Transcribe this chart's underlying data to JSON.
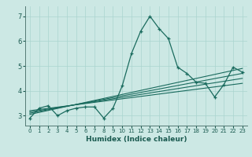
{
  "xlabel": "Humidex (Indice chaleur)",
  "ylabel": "",
  "background_color": "#cce8e4",
  "grid_color": "#aad4cf",
  "line_color": "#1a6b5e",
  "xlim": [
    -0.5,
    23.5
  ],
  "ylim": [
    2.6,
    7.4
  ],
  "yticks": [
    3,
    4,
    5,
    6,
    7
  ],
  "xticks": [
    0,
    1,
    2,
    3,
    4,
    5,
    6,
    7,
    8,
    9,
    10,
    11,
    12,
    13,
    14,
    15,
    16,
    17,
    18,
    19,
    20,
    21,
    22,
    23
  ],
  "series": [
    [
      0,
      2.9
    ],
    [
      1,
      3.3
    ],
    [
      2,
      3.4
    ],
    [
      3,
      3.0
    ],
    [
      4,
      3.2
    ],
    [
      5,
      3.3
    ],
    [
      6,
      3.35
    ],
    [
      7,
      3.35
    ],
    [
      8,
      2.9
    ],
    [
      9,
      3.3
    ],
    [
      10,
      4.2
    ],
    [
      11,
      5.5
    ],
    [
      12,
      6.4
    ],
    [
      13,
      7.0
    ],
    [
      14,
      6.5
    ],
    [
      15,
      6.1
    ],
    [
      16,
      4.95
    ],
    [
      17,
      4.7
    ],
    [
      18,
      4.35
    ],
    [
      19,
      4.3
    ],
    [
      20,
      3.75
    ],
    [
      21,
      4.25
    ],
    [
      22,
      4.95
    ],
    [
      23,
      4.75
    ]
  ],
  "trend_lines": [
    [
      [
        0,
        3.05
      ],
      [
        23,
        4.9
      ]
    ],
    [
      [
        0,
        3.1
      ],
      [
        23,
        4.7
      ]
    ],
    [
      [
        0,
        3.15
      ],
      [
        23,
        4.5
      ]
    ],
    [
      [
        0,
        3.2
      ],
      [
        23,
        4.3
      ]
    ]
  ]
}
